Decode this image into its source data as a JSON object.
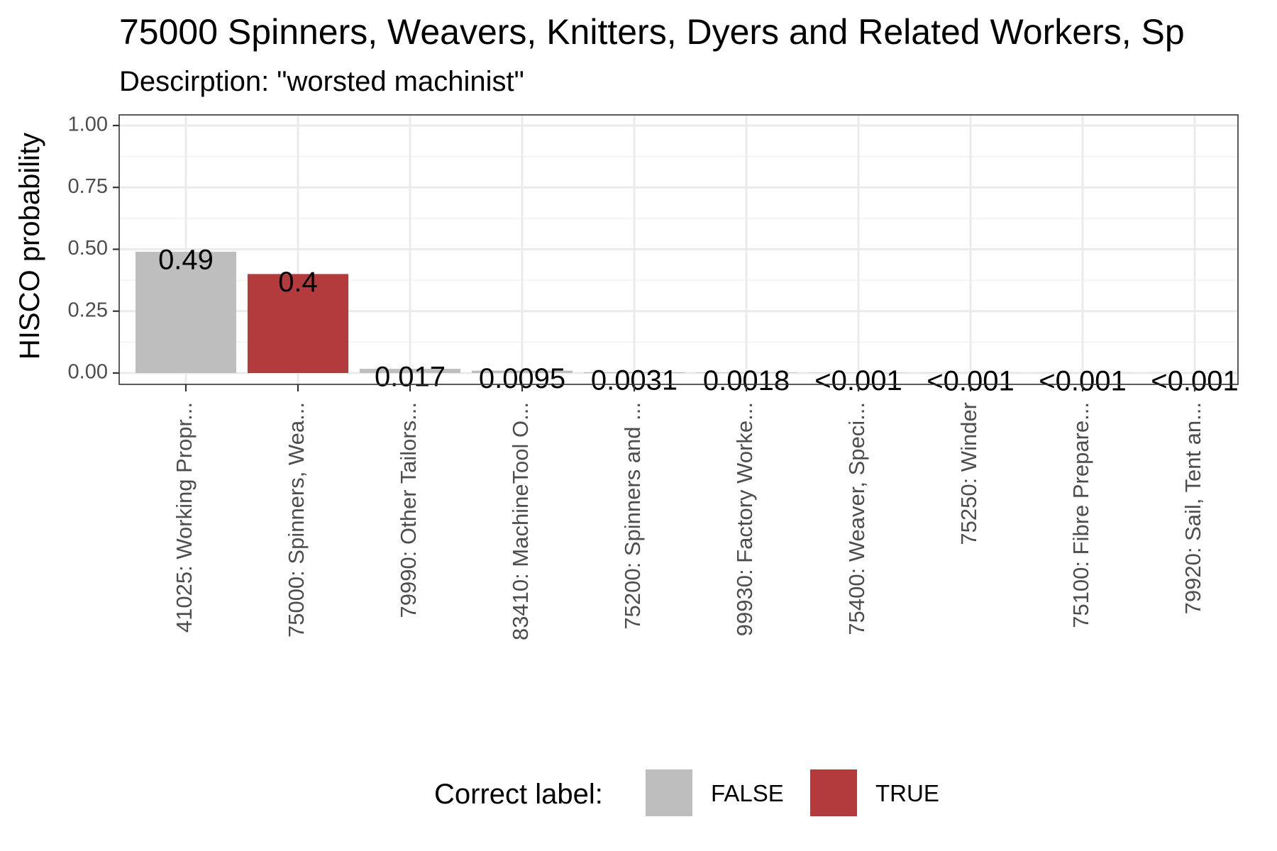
{
  "chart_data": {
    "type": "bar",
    "title": "75000 Spinners, Weavers, Knitters, Dyers and Related Workers, Sp",
    "subtitle": "Descirption: \"worsted machinist\"",
    "xlabel": "",
    "ylabel": "HISCO probability",
    "ylim": [
      0,
      1
    ],
    "yticks": [
      0,
      0.25,
      0.5,
      0.75,
      1
    ],
    "ytick_labels": [
      "0.00",
      "0.25",
      "0.50",
      "0.75",
      "1.00"
    ],
    "grid": true,
    "categories": [
      "41025: Working Propr...",
      "75000: Spinners, Wea...",
      "79990: Other Tailors...",
      "83410: MachineTool O...",
      "75200: Spinners and ...",
      "99930: Factory Worke...",
      "75400: Weaver, Speci...",
      "75250: Winder",
      "75100: Fibre Prepare...",
      "79920: Sail, Tent an..."
    ],
    "values": [
      0.49,
      0.4,
      0.017,
      0.0095,
      0.0031,
      0.0018,
      0.0009,
      0.0006,
      0.0004,
      0.0003
    ],
    "data_labels": [
      "0.49",
      "0.4",
      "0.017",
      "0.0095",
      "0.0031",
      "0.0018",
      "<0.001",
      "<0.001",
      "<0.001",
      "<0.001"
    ],
    "correct": [
      false,
      true,
      false,
      false,
      false,
      false,
      false,
      false,
      false,
      false
    ],
    "legend": {
      "title": "Correct label:",
      "position": "bottom",
      "entries": [
        {
          "label": "FALSE",
          "color": "#bebebe"
        },
        {
          "label": "TRUE",
          "color": "#b33b3e"
        }
      ]
    },
    "colors": {
      "false": "#bebebe",
      "true": "#b33b3e"
    }
  }
}
